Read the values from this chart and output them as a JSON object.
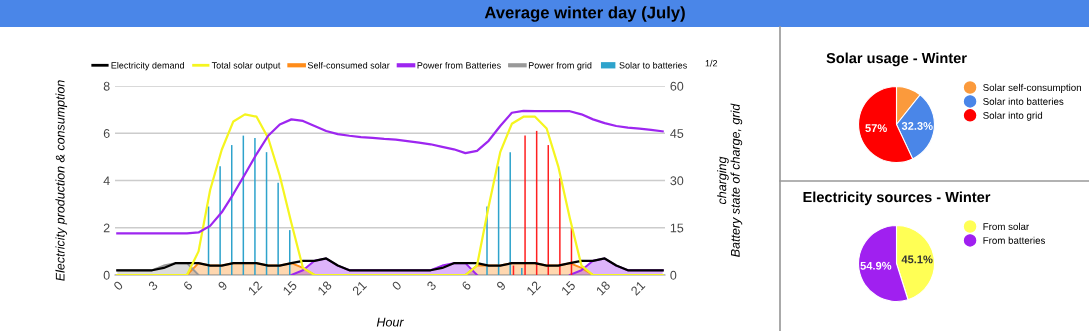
{
  "chart_data": [
    {
      "type": "line",
      "title": "Average winter day (July)",
      "xlabel": "Hour",
      "ylabel": "Electricity production & consumption",
      "y2label": "charging\nBattery state of charge, grid",
      "categories": [
        "0",
        null,
        null,
        "3",
        null,
        null,
        "6",
        null,
        null,
        "9",
        null,
        null,
        "12",
        null,
        null,
        "15",
        null,
        null,
        "18",
        null,
        null,
        "21",
        null,
        null,
        "0",
        null,
        null,
        "3",
        null,
        null,
        "6",
        null,
        null,
        "9",
        null,
        null,
        "12",
        null,
        null,
        "15",
        null,
        null,
        "18",
        null,
        null,
        "21",
        null,
        null
      ],
      "ylim": [
        0,
        8
      ],
      "yticks": [
        0,
        2,
        4,
        6,
        8
      ],
      "y2lim": [
        0,
        60
      ],
      "y2ticks": [
        0,
        15,
        30,
        45,
        60
      ],
      "grid": "y",
      "legend": "top",
      "annotations": [
        "1/2"
      ],
      "series": [
        {
          "name": "Electricity demand",
          "type": "line",
          "color": "#000000",
          "values": [
            0.2,
            0.2,
            0.2,
            0.2,
            0.3,
            0.5,
            0.5,
            0.5,
            0.4,
            0.4,
            0.5,
            0.5,
            0.5,
            0.4,
            0.4,
            0.5,
            0.6,
            0.6,
            0.7,
            0.4,
            0.2,
            0.2,
            0.2,
            0.2,
            0.2,
            0.2,
            0.2,
            0.2,
            0.3,
            0.5,
            0.5,
            0.5,
            0.4,
            0.4,
            0.5,
            0.5,
            0.5,
            0.4,
            0.4,
            0.5,
            0.6,
            0.6,
            0.7,
            0.4,
            0.2,
            0.2,
            0.2,
            0.2
          ]
        },
        {
          "name": "Total solar output",
          "type": "line",
          "color": "#f5f51f",
          "values": [
            0,
            0,
            0,
            0,
            0,
            0,
            0,
            1.0,
            3.6,
            5.3,
            6.5,
            6.8,
            6.7,
            5.8,
            4.2,
            2.2,
            0.3,
            0,
            0,
            0,
            0,
            0,
            0,
            0,
            0,
            0,
            0,
            0,
            0,
            0,
            0,
            0.4,
            2.9,
            5.2,
            6.4,
            6.7,
            6.7,
            6.2,
            4.6,
            2.4,
            0.4,
            0,
            0,
            0,
            0,
            0,
            0,
            0
          ]
        },
        {
          "name": "Self-consumed solar",
          "type": "area",
          "color": "#ff8c1a",
          "values": [
            null,
            null,
            null,
            null,
            null,
            null,
            0,
            0.5,
            0.4,
            0.4,
            0.5,
            0.5,
            0.5,
            0.4,
            0.4,
            0.5,
            0.3,
            0,
            null,
            null,
            null,
            null,
            null,
            null,
            null,
            null,
            null,
            null,
            null,
            null,
            0,
            0.4,
            0.4,
            0.4,
            0.5,
            0.5,
            0.5,
            0.4,
            0.4,
            0.5,
            0.3,
            0,
            null,
            null,
            null,
            null,
            null,
            null
          ]
        },
        {
          "name": "Power from Batteries",
          "type": "area",
          "color": "#9d26f0",
          "values": [
            null,
            null,
            null,
            null,
            null,
            null,
            null,
            null,
            null,
            null,
            null,
            null,
            null,
            null,
            null,
            0,
            0.2,
            0.6,
            0.7,
            0.4,
            0.2,
            0.2,
            0.2,
            0.2,
            0.2,
            0.2,
            0.2,
            0.2,
            0.4,
            0.5,
            0.5,
            0,
            null,
            null,
            null,
            null,
            null,
            null,
            null,
            0,
            0.2,
            0.6,
            0.7,
            0.4,
            0.2,
            0.2,
            0.2,
            0.2
          ]
        },
        {
          "name": "Power from grid",
          "type": "area",
          "color": "#999999",
          "values": [
            0.2,
            0.2,
            0.2,
            0.2,
            0.4,
            0.5,
            0.5,
            0,
            null,
            null,
            null,
            null,
            null,
            null,
            null,
            null,
            null,
            null,
            null,
            null,
            null,
            null,
            null,
            null,
            null,
            null,
            null,
            null,
            null,
            null,
            null,
            null,
            null,
            null,
            null,
            null,
            null,
            null,
            null,
            null,
            null,
            null,
            null,
            null,
            null,
            null,
            null,
            null
          ]
        },
        {
          "name": "Solar to batteries",
          "type": "bar",
          "color": "#2ea3cc",
          "values": [
            null,
            null,
            null,
            null,
            null,
            null,
            null,
            null,
            2.9,
            4.6,
            5.5,
            5.9,
            5.8,
            5.2,
            3.9,
            1.9,
            null,
            null,
            null,
            null,
            null,
            null,
            null,
            null,
            null,
            null,
            null,
            null,
            null,
            null,
            null,
            null,
            2.9,
            4.6,
            5.2,
            0.3,
            null,
            null,
            null,
            null,
            null,
            null,
            null,
            null,
            null,
            null,
            null,
            null
          ]
        },
        {
          "type": "bar",
          "color": "#ff2020",
          "values": [
            null,
            null,
            null,
            null,
            null,
            null,
            null,
            null,
            null,
            null,
            null,
            null,
            null,
            null,
            null,
            null,
            null,
            null,
            null,
            null,
            null,
            null,
            null,
            null,
            null,
            null,
            null,
            null,
            null,
            null,
            null,
            null,
            null,
            null,
            0.4,
            5.9,
            6.1,
            5.5,
            4.1,
            2.0,
            null,
            null,
            null,
            null,
            null,
            null,
            null,
            null
          ]
        },
        {
          "type": "line",
          "axis": "y2",
          "color": "#9d26f0",
          "values": [
            13.2,
            13.2,
            13.2,
            13.2,
            13.2,
            13.2,
            13.2,
            13.5,
            15.6,
            19.9,
            25.7,
            32.0,
            38.4,
            44.2,
            47.8,
            49.4,
            48.9,
            47.3,
            45.7,
            44.7,
            44.2,
            43.8,
            43.5,
            43.2,
            43.0,
            42.5,
            42.0,
            41.5,
            40.7,
            39.9,
            38.7,
            39.4,
            42.6,
            47.3,
            51.5,
            52.1,
            52.0,
            52.0,
            52.0,
            52.0,
            51.0,
            49.4,
            48.2,
            47.3,
            46.8,
            46.5,
            46.1,
            45.6
          ]
        }
      ]
    },
    {
      "type": "pie",
      "title": "Solar usage - Winter",
      "categories": [
        "Solar self-consumption",
        "Solar into batteries",
        "Solar into grid"
      ],
      "values": [
        10.7,
        32.3,
        57
      ],
      "colors": [
        "#fb9a3c",
        "#4a86e8",
        "#ff0000"
      ],
      "value_labels": [
        null,
        "32.3%",
        "57%"
      ],
      "legend": "right"
    },
    {
      "type": "pie",
      "title": "Electricity sources - Winter",
      "categories": [
        "From solar",
        "From batteries"
      ],
      "values": [
        45.1,
        54.9
      ],
      "colors": [
        "#ffff55",
        "#a020f0"
      ],
      "value_labels": [
        "45.1%",
        "54.9%"
      ],
      "legend": "right"
    }
  ]
}
